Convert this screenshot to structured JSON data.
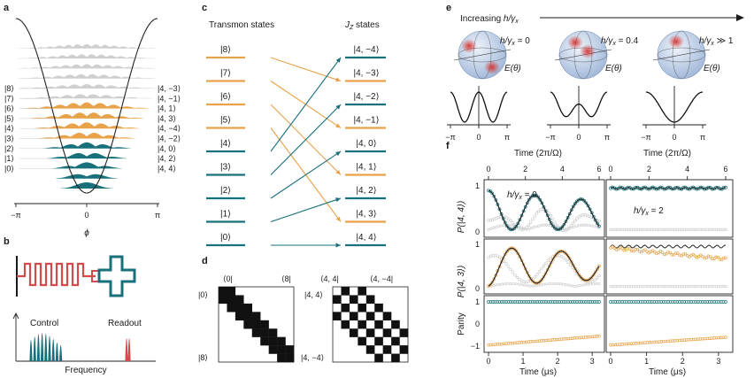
{
  "colors": {
    "teal": "#17707a",
    "orange": "#e8a24a",
    "gray": "#cfcfcf",
    "red": "#d24a4a",
    "black": "#1a1a1a"
  },
  "panels": {
    "a": {
      "label": "a",
      "left_labels": [
        "|8⟩",
        "|7⟩",
        "|6⟩",
        "|5⟩",
        "|4⟩",
        "|3⟩",
        "|2⟩",
        "|1⟩",
        "|0⟩"
      ],
      "right_labels": [
        "|4, −3⟩",
        "|4, −1⟩",
        "|4, 1⟩",
        "|4, 3⟩",
        "|4, −4⟩",
        "|4, −2⟩",
        "|4, 0⟩",
        "|4, 2⟩",
        "|4, 4⟩"
      ],
      "ticks": [
        "−π",
        "0",
        "π"
      ],
      "xlabel": "ϕ"
    },
    "b": {
      "label": "b",
      "control": "Control",
      "readout": "Readout",
      "xlabel": "Frequency"
    },
    "c": {
      "label": "c",
      "left_title": "Transmon states",
      "right_title_prefix": "J",
      "right_title_sub": "Z",
      "right_title_suffix": " states",
      "transmon": [
        "|8⟩",
        "|7⟩",
        "|6⟩",
        "|5⟩",
        "|4⟩",
        "|3⟩",
        "|2⟩",
        "|1⟩",
        "|0⟩"
      ],
      "jz": [
        "|4, −4⟩",
        "|4, −3⟩",
        "|4, −2⟩",
        "|4, −1⟩",
        "|4, 0⟩",
        "|4, 1⟩",
        "|4, 2⟩",
        "|4, 3⟩",
        "|4, 4⟩"
      ]
    },
    "d": {
      "label": "d",
      "left_top": [
        "⟨0|",
        "⟨8|"
      ],
      "left_side": [
        "|0⟩",
        "|8⟩"
      ],
      "right_top": [
        "⟨4, 4|",
        "⟨4, −4|"
      ],
      "right_side": [
        "|4, 4⟩",
        "|4, −4⟩"
      ]
    },
    "e": {
      "label": "e",
      "title_prefix": "Increasing ",
      "title_ratio": "h/γ",
      "title_sub": "x",
      "spheres": [
        {
          "ratio": "h/γ",
          "sub": "x",
          "value": " = 0"
        },
        {
          "ratio": "h/γ",
          "sub": "x",
          "value": " = 0.4"
        },
        {
          "ratio": "h/γ",
          "sub": "x",
          "value": " ≫ 1"
        }
      ],
      "energy": "E(θ)",
      "ticks": [
        "−π",
        "0",
        "π"
      ]
    },
    "f": {
      "label": "f",
      "top_axis": "Time (2π/Ω)",
      "top_ticks": [
        "0",
        "2",
        "4",
        "6"
      ],
      "ylabels": [
        "P(|4, 4⟩)",
        "P(|4, 3⟩)",
        "Parity"
      ],
      "y1_ticks": [
        "0",
        "1"
      ],
      "y3_ticks": [
        "−1",
        "0",
        "1"
      ],
      "bottom_axis": "Time (μs)",
      "bottom_ticks": [
        "0",
        "1",
        "2",
        "3"
      ],
      "annot_left": "h/γ",
      "annot_left_sub": "x",
      "annot_left_val": " = 0",
      "annot_right": "h/γ",
      "annot_right_sub": "x",
      "annot_right_val": " = 2"
    }
  }
}
